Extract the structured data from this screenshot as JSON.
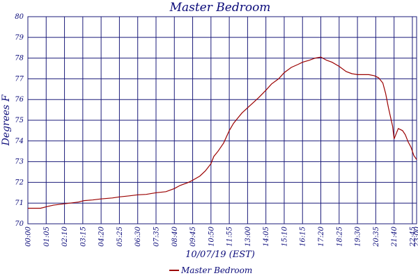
{
  "chart_data": {
    "type": "line",
    "title": "Master Bedroom",
    "xlabel": "10/07/19 (EST)",
    "ylabel": "Degrees F",
    "ylim": [
      70,
      80
    ],
    "yticks": [
      "70",
      "71",
      "72",
      "73",
      "74",
      "75",
      "76",
      "77",
      "78",
      "79",
      "80"
    ],
    "xticks": [
      "00:00",
      "01:05",
      "02:10",
      "03:15",
      "04:20",
      "05:25",
      "06:30",
      "07:35",
      "08:40",
      "09:45",
      "10:50",
      "11:55",
      "13:00",
      "14:05",
      "15:10",
      "16:15",
      "17:20",
      "18:25",
      "19:30",
      "20:35",
      "21:40",
      "22:45",
      "23:00"
    ],
    "xrange_minutes": [
      0,
      1380
    ],
    "grid": true,
    "legend_position": "bottom-center",
    "series": [
      {
        "name": "Master Bedroom",
        "color": "#9b0000",
        "x": [
          "00:00",
          "00:45",
          "01:05",
          "01:30",
          "02:00",
          "02:30",
          "03:00",
          "03:20",
          "03:50",
          "04:20",
          "05:00",
          "05:25",
          "06:00",
          "06:30",
          "07:00",
          "07:35",
          "08:10",
          "08:40",
          "09:00",
          "09:30",
          "09:45",
          "10:10",
          "10:30",
          "10:50",
          "11:00",
          "11:15",
          "11:35",
          "11:55",
          "12:10",
          "12:25",
          "12:40",
          "13:00",
          "13:20",
          "13:40",
          "14:05",
          "14:25",
          "14:50",
          "15:10",
          "15:35",
          "16:00",
          "16:15",
          "16:40",
          "17:00",
          "17:20",
          "17:40",
          "18:00",
          "18:25",
          "18:50",
          "19:10",
          "19:30",
          "19:50",
          "20:10",
          "20:30",
          "20:45",
          "21:00",
          "21:10",
          "21:20",
          "21:30",
          "21:35",
          "21:40",
          "21:55",
          "22:10",
          "22:20",
          "22:30",
          "22:40",
          "22:50",
          "23:00"
        ],
        "y": [
          70.75,
          70.75,
          70.82,
          70.9,
          70.95,
          71.0,
          71.05,
          71.12,
          71.15,
          71.2,
          71.25,
          71.3,
          71.35,
          71.4,
          71.42,
          71.5,
          71.55,
          71.7,
          71.85,
          72.0,
          72.1,
          72.3,
          72.55,
          72.9,
          73.25,
          73.5,
          73.9,
          74.5,
          74.85,
          75.1,
          75.35,
          75.6,
          75.85,
          76.1,
          76.45,
          76.75,
          77.0,
          77.3,
          77.55,
          77.7,
          77.8,
          77.9,
          78.0,
          78.05,
          77.9,
          77.8,
          77.6,
          77.35,
          77.25,
          77.2,
          77.2,
          77.2,
          77.15,
          77.05,
          76.8,
          76.3,
          75.6,
          75.0,
          74.7,
          74.1,
          74.6,
          74.5,
          74.3,
          73.95,
          73.7,
          73.3,
          73.1
        ]
      }
    ]
  }
}
